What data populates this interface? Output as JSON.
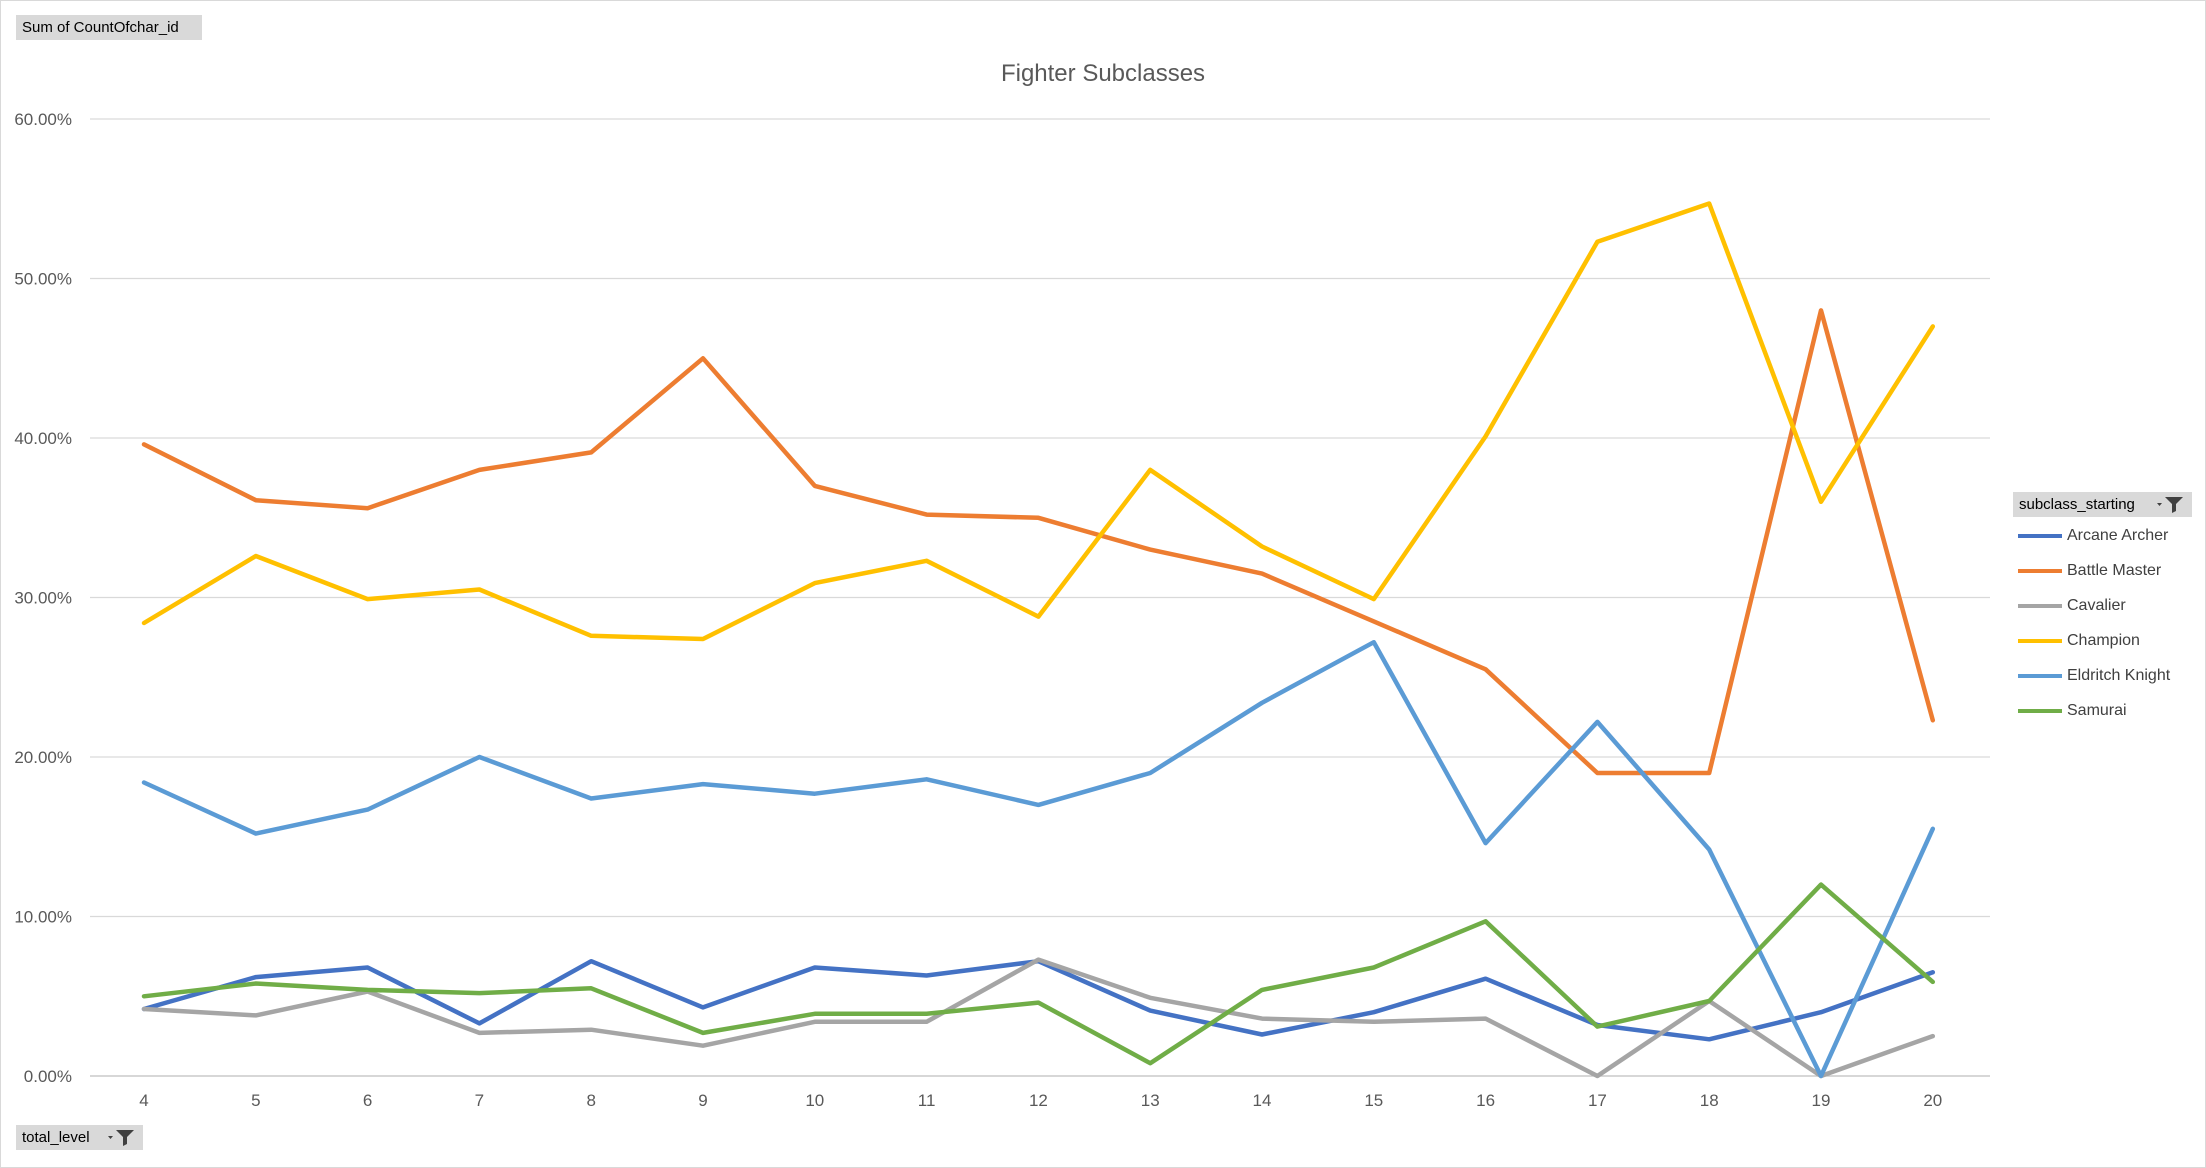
{
  "field_buttons": {
    "values_field": "Sum of CountOfchar_id",
    "axis_field": "total_level",
    "legend_field": "subclass_starting"
  },
  "icons": {
    "dropdown": "dropdown-arrow-icon",
    "filter": "filter-funnel-icon"
  },
  "chart_data": {
    "type": "line",
    "title": "Fighter Subclasses",
    "xlabel": "",
    "ylabel": "",
    "categories": [
      "4",
      "5",
      "6",
      "7",
      "8",
      "9",
      "10",
      "11",
      "12",
      "13",
      "14",
      "15",
      "16",
      "17",
      "18",
      "19",
      "20"
    ],
    "ylim": [
      0,
      60
    ],
    "ytick_labels": [
      "0.00%",
      "10.00%",
      "20.00%",
      "30.00%",
      "40.00%",
      "50.00%",
      "60.00%"
    ],
    "grid": true,
    "legend_position": "right",
    "series": [
      {
        "name": "Arcane Archer",
        "color": "#4472C4",
        "values": [
          4.2,
          6.2,
          6.8,
          3.3,
          7.2,
          4.3,
          6.8,
          6.3,
          7.2,
          4.1,
          2.6,
          4.0,
          6.1,
          3.2,
          2.3,
          4.0,
          6.5
        ]
      },
      {
        "name": "Battle Master",
        "color": "#ED7D31",
        "values": [
          39.6,
          36.1,
          35.6,
          38.0,
          39.1,
          45.0,
          37.0,
          35.2,
          35.0,
          33.0,
          31.5,
          28.5,
          25.5,
          19.0,
          19.0,
          48.0,
          22.3
        ]
      },
      {
        "name": "Cavalier",
        "color": "#A5A5A5",
        "values": [
          4.2,
          3.8,
          5.3,
          2.7,
          2.9,
          1.9,
          3.4,
          3.4,
          7.3,
          4.9,
          3.6,
          3.4,
          3.6,
          0.0,
          4.7,
          0.0,
          2.5
        ]
      },
      {
        "name": "Champion",
        "color": "#FFC000",
        "values": [
          28.4,
          32.6,
          29.9,
          30.5,
          27.6,
          27.4,
          30.9,
          32.3,
          28.8,
          38.0,
          33.2,
          29.9,
          40.1,
          52.3,
          54.7,
          36.0,
          47.0
        ]
      },
      {
        "name": "Eldritch Knight",
        "color": "#5B9BD5",
        "values": [
          18.4,
          15.2,
          16.7,
          20.0,
          17.4,
          18.3,
          17.7,
          18.6,
          17.0,
          19.0,
          23.4,
          27.2,
          14.6,
          22.2,
          14.2,
          0.0,
          15.5
        ]
      },
      {
        "name": "Samurai",
        "color": "#70AD47",
        "values": [
          5.0,
          5.8,
          5.4,
          5.2,
          5.5,
          2.7,
          3.9,
          3.9,
          4.6,
          0.8,
          5.4,
          6.8,
          9.7,
          3.1,
          4.7,
          12.0,
          5.9
        ]
      }
    ]
  }
}
